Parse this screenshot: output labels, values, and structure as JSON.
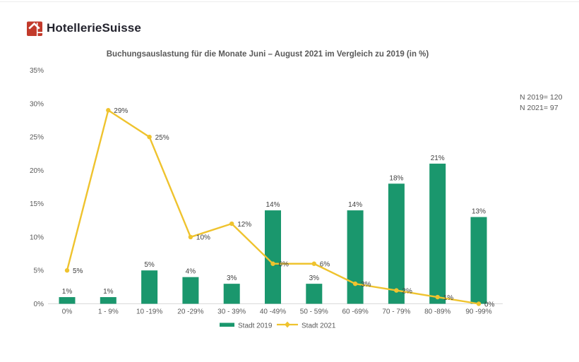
{
  "header": {
    "logo_text": "HotellerieSuisse",
    "logo_icon": "hotelleriesuisse-house-exclamation-icon",
    "logo_icon_color": "#c23a2b",
    "logo_text_color": "#23232d"
  },
  "annotations": {
    "n_2019": "N 2019= 120",
    "n_2021": "N 2021= 97"
  },
  "chart_data": {
    "type": "bar",
    "combo": "bar+line",
    "title": "Buchungsauslastung für die Monate Juni – August 2021 im Vergleich zu 2019 (in %)",
    "categories": [
      "0%",
      "1 - 9%",
      "10 -19%",
      "20 -29%",
      "30 - 39%",
      "40 -49%",
      "50 - 59%",
      "60 -69%",
      "70 - 79%",
      "80 -89%",
      "90 -99%"
    ],
    "series": [
      {
        "name": "Stadt 2019",
        "type": "bar",
        "color": "#1a976d",
        "values": [
          1,
          1,
          5,
          4,
          3,
          14,
          3,
          14,
          18,
          21,
          13
        ]
      },
      {
        "name": "Stadt 2021",
        "type": "line",
        "color": "#efc32e",
        "values": [
          5,
          29,
          25,
          10,
          12,
          6,
          6,
          3,
          2,
          1,
          0
        ]
      }
    ],
    "xlabel": "",
    "ylabel": "",
    "ylim": [
      0,
      35
    ],
    "ytick_step": 5,
    "ytick_suffix": "%",
    "grid": false,
    "data_labels": true,
    "legend_position": "bottom",
    "axis_line_color": "#d9d9d9",
    "label_color": "#404040",
    "axis_text_color": "#595959"
  }
}
